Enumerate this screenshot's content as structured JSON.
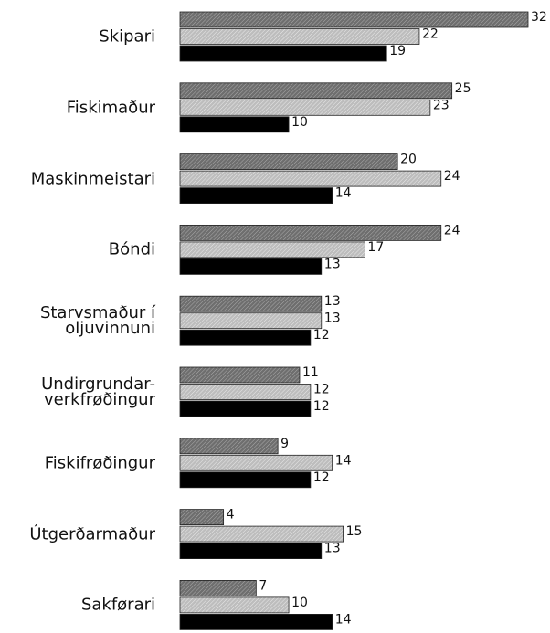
{
  "chart_data": {
    "type": "bar",
    "orientation": "horizontal",
    "categories": [
      "Skipari",
      "Fiskimaður",
      "Maskinmeistari",
      "Bóndi",
      "Starvsmaður í\noljuvinnuni",
      "Undirgrundar-\nverkfrøðingur",
      "Fiskifrøðingur",
      "Útgerðarmaður",
      "Sakførari"
    ],
    "series": [
      {
        "color": "#6e6e6e",
        "values": [
          32,
          25,
          20,
          24,
          13,
          11,
          9,
          4,
          7
        ]
      },
      {
        "color": "#bdbdbd",
        "values": [
          22,
          23,
          24,
          17,
          13,
          12,
          14,
          15,
          10
        ]
      },
      {
        "color": "#000000",
        "values": [
          19,
          10,
          14,
          13,
          12,
          12,
          12,
          13,
          14
        ]
      }
    ],
    "xlim": [
      0,
      32
    ]
  }
}
